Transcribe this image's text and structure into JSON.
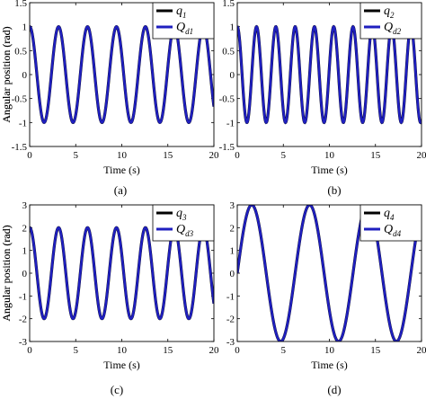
{
  "chart_data": [
    {
      "type": "line",
      "panel_caption": "(a)",
      "xlabel": "Time (s)",
      "ylabel": "Angular position (rad)",
      "xlim": [
        0,
        20
      ],
      "ylim": [
        -1.5,
        1.5
      ],
      "xticks": [
        "0",
        "5",
        "10",
        "15",
        "20"
      ],
      "yticks": [
        "-1.5",
        "-1",
        "-0.5",
        "0",
        "0.5",
        "1",
        "1.5"
      ],
      "legend": {
        "position": "top-right",
        "entries": [
          {
            "base": "q",
            "sub": "1"
          },
          {
            "base": "Q",
            "sub": "d1"
          }
        ]
      },
      "series": [
        {
          "name": "q1",
          "color": "#000000",
          "amplitude": 1,
          "omega": 2.0,
          "phase": 1.5708
        },
        {
          "name": "Qd1",
          "color": "#1f1fbf",
          "amplitude": 1,
          "omega": 2.0,
          "phase": 1.5708
        }
      ]
    },
    {
      "type": "line",
      "panel_caption": "(b)",
      "xlabel": "Time (s)",
      "ylabel": "Angular position (rad)",
      "xlim": [
        0,
        20
      ],
      "ylim": [
        -1.5,
        1.5
      ],
      "xticks": [
        "0",
        "5",
        "10",
        "15",
        "20"
      ],
      "yticks": [
        "-1.5",
        "-1",
        "-0.5",
        "0",
        "0.5",
        "1",
        "1.5"
      ],
      "legend": {
        "position": "top-right",
        "entries": [
          {
            "base": "q",
            "sub": "2"
          },
          {
            "base": "Q",
            "sub": "d2"
          }
        ]
      },
      "series": [
        {
          "name": "q2",
          "color": "#000000",
          "amplitude": 1,
          "omega": 3.0,
          "phase": 1.5708
        },
        {
          "name": "Qd2",
          "color": "#1f1fbf",
          "amplitude": 1,
          "omega": 3.0,
          "phase": 1.5708
        }
      ]
    },
    {
      "type": "line",
      "panel_caption": "(c)",
      "xlabel": "Time (s)",
      "ylabel": "Angular position (rad)",
      "xlim": [
        0,
        20
      ],
      "ylim": [
        -3,
        3
      ],
      "xticks": [
        "0",
        "5",
        "10",
        "15",
        "20"
      ],
      "yticks": [
        "-3",
        "-2",
        "-1",
        "0",
        "1",
        "2",
        "3"
      ],
      "legend": {
        "position": "top-right",
        "entries": [
          {
            "base": "q",
            "sub": "3"
          },
          {
            "base": "Q",
            "sub": "d3"
          }
        ]
      },
      "series": [
        {
          "name": "q3",
          "color": "#000000",
          "amplitude": 2,
          "omega": 2.0,
          "phase": 1.5708
        },
        {
          "name": "Qd3",
          "color": "#1f1fbf",
          "amplitude": 2,
          "omega": 2.0,
          "phase": 1.5708
        }
      ]
    },
    {
      "type": "line",
      "panel_caption": "(d)",
      "xlabel": "Time (s)",
      "ylabel": "Angular position (rad)",
      "xlim": [
        0,
        20
      ],
      "ylim": [
        -3,
        3
      ],
      "xticks": [
        "0",
        "5",
        "10",
        "15",
        "20"
      ],
      "yticks": [
        "-3",
        "-2",
        "-1",
        "0",
        "1",
        "2",
        "3"
      ],
      "legend": {
        "position": "top-right",
        "entries": [
          {
            "base": "q",
            "sub": "4"
          },
          {
            "base": "Q",
            "sub": "d4"
          }
        ]
      },
      "series": [
        {
          "name": "q4",
          "color": "#000000",
          "amplitude": 3,
          "omega": 1.0,
          "phase": 0
        },
        {
          "name": "Qd4",
          "color": "#1f1fbf",
          "amplitude": 3,
          "omega": 1.0,
          "phase": 0
        }
      ]
    }
  ]
}
